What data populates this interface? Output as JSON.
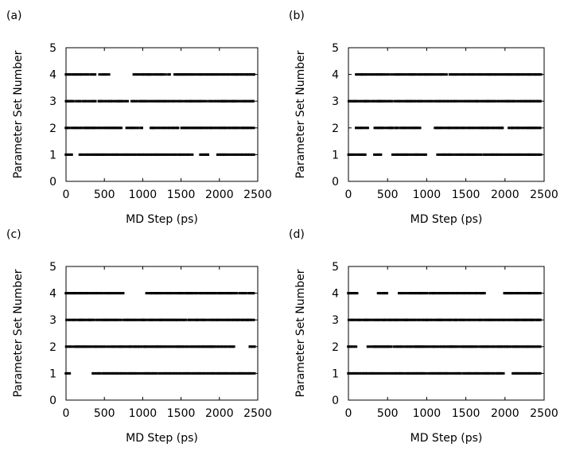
{
  "chart_data": [
    {
      "type": "scatter",
      "panel_label": "(a)",
      "xlabel": "MD Step (ps)",
      "ylabel": "Parameter Set Number",
      "xlim": [
        0,
        2500
      ],
      "ylim": [
        0,
        5
      ],
      "xticks": [
        "0",
        "500",
        "1000",
        "1500",
        "2000",
        "2500"
      ],
      "yticks": [
        "0",
        "1",
        "2",
        "3",
        "4",
        "5"
      ],
      "grid": false,
      "marker_color": "#000000",
      "series": [
        {
          "y": 4,
          "segments": [
            [
              0,
              390
            ],
            [
              430,
              560
            ],
            [
              880,
              1000
            ],
            [
              1010,
              1360
            ],
            [
              1410,
              2460
            ]
          ]
        },
        {
          "y": 3,
          "segments": [
            [
              0,
              400
            ],
            [
              420,
              820
            ],
            [
              860,
              2460
            ]
          ]
        },
        {
          "y": 2,
          "segments": [
            [
              0,
              720
            ],
            [
              790,
              1000
            ],
            [
              1110,
              1460
            ],
            [
              1500,
              2460
            ]
          ]
        },
        {
          "y": 1,
          "segments": [
            [
              0,
              100
            ],
            [
              180,
              1660
            ],
            [
              1750,
              1860
            ],
            [
              1970,
              2460
            ]
          ]
        }
      ]
    },
    {
      "type": "scatter",
      "panel_label": "(b)",
      "xlabel": "MD Step (ps)",
      "ylabel": "Parameter Set Number",
      "xlim": [
        0,
        2500
      ],
      "ylim": [
        0,
        5
      ],
      "xticks": [
        "0",
        "500",
        "1000",
        "1500",
        "2000",
        "2500"
      ],
      "yticks": [
        "0",
        "1",
        "2",
        "3",
        "4",
        "5"
      ],
      "grid": false,
      "marker_color": "#000000",
      "series": [
        {
          "y": 4,
          "segments": [
            [
              100,
              1260
            ],
            [
              1290,
              2460
            ]
          ]
        },
        {
          "y": 3,
          "segments": [
            [
              0,
              2460
            ]
          ]
        },
        {
          "y": 2,
          "segments": [
            [
              90,
              260
            ],
            [
              330,
              930
            ],
            [
              1110,
              1980
            ],
            [
              2050,
              2460
            ]
          ]
        },
        {
          "y": 1,
          "segments": [
            [
              0,
              220
            ],
            [
              330,
              420
            ],
            [
              560,
              1000
            ],
            [
              1140,
              2460
            ]
          ]
        }
      ]
    },
    {
      "type": "scatter",
      "panel_label": "(c)",
      "xlabel": "MD Step (ps)",
      "ylabel": "Parameter Set Number",
      "xlim": [
        0,
        2500
      ],
      "ylim": [
        0,
        5
      ],
      "xticks": [
        "0",
        "500",
        "1000",
        "1500",
        "2000",
        "2500"
      ],
      "yticks": [
        "0",
        "1",
        "2",
        "3",
        "4",
        "5"
      ],
      "grid": false,
      "marker_color": "#000000",
      "series": [
        {
          "y": 4,
          "segments": [
            [
              0,
              760
            ],
            [
              1050,
              2460
            ]
          ]
        },
        {
          "y": 3,
          "segments": [
            [
              0,
              2460
            ]
          ]
        },
        {
          "y": 2,
          "segments": [
            [
              0,
              2200
            ],
            [
              2390,
              2460
            ]
          ]
        },
        {
          "y": 1,
          "segments": [
            [
              0,
              60
            ],
            [
              350,
              2460
            ]
          ]
        }
      ]
    },
    {
      "type": "scatter",
      "panel_label": "(d)",
      "xlabel": "MD Step (ps)",
      "ylabel": "Parameter Set Number",
      "xlim": [
        0,
        2500
      ],
      "ylim": [
        0,
        5
      ],
      "xticks": [
        "0",
        "500",
        "1000",
        "1500",
        "2000",
        "2500"
      ],
      "yticks": [
        "0",
        "1",
        "2",
        "3",
        "4",
        "5"
      ],
      "grid": false,
      "marker_color": "#000000",
      "series": [
        {
          "y": 4,
          "segments": [
            [
              0,
              120
            ],
            [
              380,
              500
            ],
            [
              650,
              1750
            ],
            [
              1990,
              2460
            ]
          ]
        },
        {
          "y": 3,
          "segments": [
            [
              0,
              2460
            ]
          ]
        },
        {
          "y": 2,
          "segments": [
            [
              0,
              100
            ],
            [
              240,
              2460
            ]
          ]
        },
        {
          "y": 1,
          "segments": [
            [
              0,
              1990
            ],
            [
              2100,
              2460
            ]
          ]
        }
      ]
    }
  ]
}
